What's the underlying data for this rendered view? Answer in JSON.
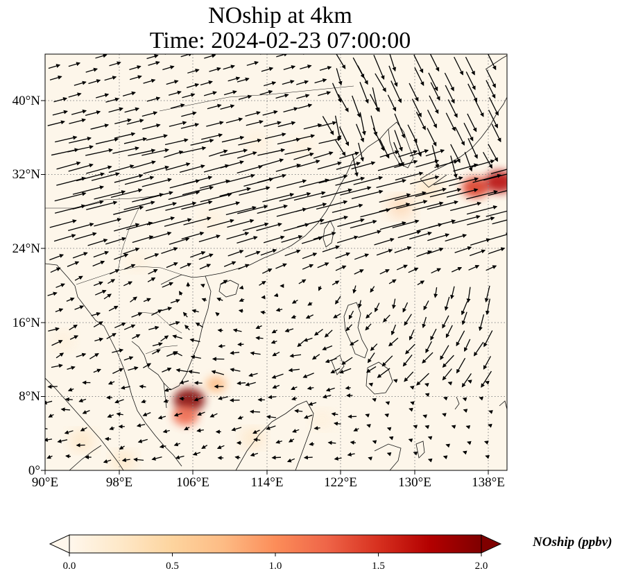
{
  "figure": {
    "title_line1": "NOship at 4km",
    "title_line2": "Time: 2024-02-23 07:00:00"
  },
  "map": {
    "projection": "PlateCarree",
    "lon_range": [
      90,
      140
    ],
    "lat_range": [
      0,
      45
    ],
    "gridlines": "dotted grey",
    "lat_ticks": [
      {
        "value": 40,
        "label": "40°N"
      },
      {
        "value": 32,
        "label": "32°N"
      },
      {
        "value": 24,
        "label": "24°N"
      },
      {
        "value": 16,
        "label": "16°N"
      },
      {
        "value": 8,
        "label": "8°N"
      },
      {
        "value": 0,
        "label": "0°"
      }
    ],
    "lon_ticks": [
      {
        "value": 90,
        "label": "90°E"
      },
      {
        "value": 98,
        "label": "98°E"
      },
      {
        "value": 106,
        "label": "106°E"
      },
      {
        "value": 114,
        "label": "114°E"
      },
      {
        "value": 122,
        "label": "122°E"
      },
      {
        "value": 130,
        "label": "130°E"
      },
      {
        "value": 138,
        "label": "138°E"
      }
    ],
    "field": "NOship concentration",
    "hotspots": [
      {
        "lon": 105.6,
        "lat": 7.6,
        "value": 0.9
      },
      {
        "lon": 105.2,
        "lat": 5.9,
        "value": 0.6
      },
      {
        "lon": 108.5,
        "lat": 9.3,
        "value": 0.35
      },
      {
        "lon": 136.6,
        "lat": 30.6,
        "value": 0.7
      },
      {
        "lon": 139.2,
        "lat": 31.2,
        "value": 0.8
      },
      {
        "lon": 128.5,
        "lat": 28.5,
        "value": 0.3
      },
      {
        "lon": 131.5,
        "lat": 30.5,
        "value": 0.25
      },
      {
        "lon": 94.0,
        "lat": 3.2,
        "value": 0.25
      },
      {
        "lon": 98.5,
        "lat": 1.0,
        "value": 0.2
      },
      {
        "lon": 112.5,
        "lat": 3.5,
        "value": 0.18
      },
      {
        "lon": 120.0,
        "lat": 5.5,
        "value": 0.15
      },
      {
        "lon": 92.0,
        "lat": 14.0,
        "value": 0.15
      },
      {
        "lon": 113.0,
        "lat": 35.5,
        "value": 0.15
      },
      {
        "lon": 118.0,
        "lat": 35.0,
        "value": 0.12
      },
      {
        "lon": 108.0,
        "lat": 27.0,
        "value": 0.12
      },
      {
        "lon": 100.0,
        "lat": 22.5,
        "value": 0.1
      }
    ],
    "wind_vectors": "quiver (westerly jet 24–34°N)"
  },
  "colorbar": {
    "label": "NOship (ppbv)",
    "colormap": "OrRd",
    "range": [
      0.0,
      2.0
    ],
    "extend": "both",
    "ticks": [
      {
        "value": 0.0,
        "label": "0.0"
      },
      {
        "value": 0.5,
        "label": "0.5"
      },
      {
        "value": 1.0,
        "label": "1.0"
      },
      {
        "value": 1.5,
        "label": "1.5"
      },
      {
        "value": 2.0,
        "label": "2.0"
      }
    ],
    "colors": [
      "#fff7ec",
      "#fee8c8",
      "#fdd49e",
      "#fdbb84",
      "#fc8d59",
      "#ef6548",
      "#d7301f",
      "#b30000",
      "#7f0000"
    ]
  }
}
